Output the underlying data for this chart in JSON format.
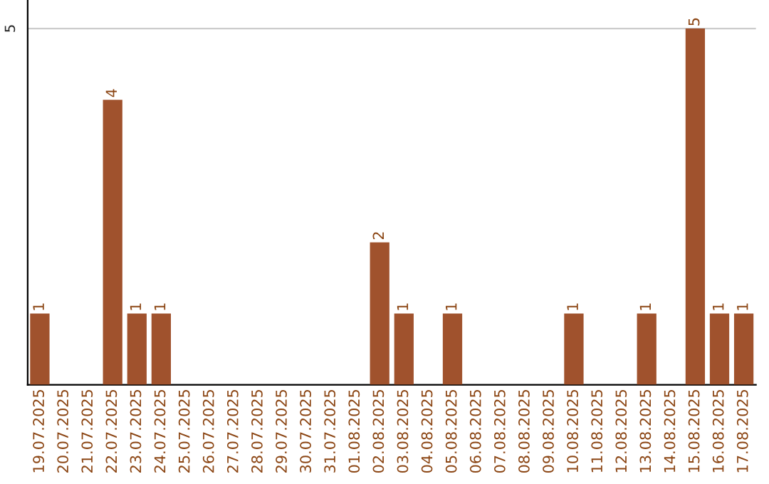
{
  "chart_data": {
    "type": "bar",
    "categories": [
      "19.07.2025",
      "20.07.2025",
      "21.07.2025",
      "22.07.2025",
      "23.07.2025",
      "24.07.2025",
      "25.07.2025",
      "26.07.2025",
      "27.07.2025",
      "28.07.2025",
      "29.07.2025",
      "30.07.2025",
      "31.07.2025",
      "01.08.2025",
      "02.08.2025",
      "03.08.2025",
      "04.08.2025",
      "05.08.2025",
      "06.08.2025",
      "07.08.2025",
      "08.08.2025",
      "09.08.2025",
      "10.08.2025",
      "11.08.2025",
      "12.08.2025",
      "13.08.2025",
      "14.08.2025",
      "15.08.2025",
      "16.08.2025",
      "17.08.2025"
    ],
    "values": [
      1,
      0,
      0,
      4,
      1,
      1,
      0,
      0,
      0,
      0,
      0,
      0,
      0,
      0,
      2,
      1,
      0,
      1,
      0,
      0,
      0,
      0,
      1,
      0,
      0,
      1,
      0,
      5,
      1,
      1
    ],
    "color": "#a0522d",
    "value_labels": [
      "1",
      null,
      null,
      "4",
      "1",
      "1",
      null,
      null,
      null,
      null,
      null,
      null,
      null,
      null,
      "2",
      "1",
      null,
      "1",
      null,
      null,
      null,
      null,
      "1",
      null,
      null,
      "1",
      null,
      "5",
      "1",
      "1"
    ],
    "ylim": [
      0,
      5.4
    ],
    "yticks": [
      5
    ],
    "grid": "y"
  }
}
